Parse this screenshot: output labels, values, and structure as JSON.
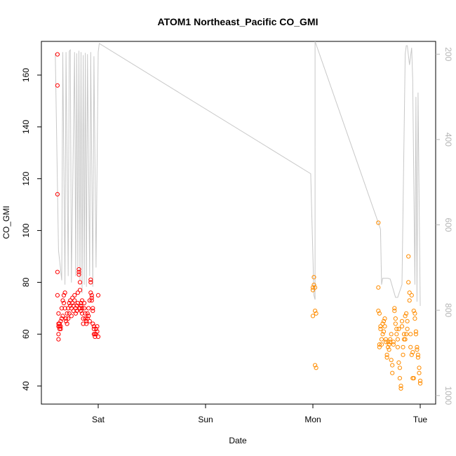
{
  "chart_data": {
    "type": "scatter",
    "title": "ATOM1 Northeast_Pacific CO_GMI",
    "xlabel": "Date",
    "ylabel": "CO_GMI",
    "x_unit": "day offset from Sat 00:00",
    "xlim": [
      -0.44,
      3.15
    ],
    "x_ticks": [
      {
        "value": 0,
        "label": "Sat"
      },
      {
        "value": 1,
        "label": "Sun"
      },
      {
        "value": 2,
        "label": "Mon"
      },
      {
        "value": 3,
        "label": "Tue"
      }
    ],
    "ylim": [
      33,
      173
    ],
    "y_ticks": [
      40,
      60,
      80,
      100,
      120,
      140,
      160
    ],
    "right_axis": {
      "label_color": "#b5b5b5",
      "ylim": [
        1020,
        170
      ],
      "ticks": [
        200,
        400,
        600,
        800,
        1000
      ]
    },
    "grid": false,
    "series": [
      {
        "color": "#ff0000",
        "marker": "open-circle",
        "x": [
          -0.38,
          -0.38,
          -0.38,
          -0.38,
          -0.38,
          -0.37,
          -0.37,
          -0.37,
          -0.37,
          -0.37,
          -0.36,
          -0.36,
          -0.36,
          -0.35,
          -0.35,
          -0.35,
          -0.34,
          -0.34,
          -0.33,
          -0.33,
          -0.32,
          -0.32,
          -0.31,
          -0.31,
          -0.3,
          -0.3,
          -0.29,
          -0.29,
          -0.28,
          -0.28,
          -0.27,
          -0.27,
          -0.26,
          -0.26,
          -0.25,
          -0.25,
          -0.24,
          -0.24,
          -0.23,
          -0.23,
          -0.22,
          -0.22,
          -0.21,
          -0.21,
          -0.2,
          -0.2,
          -0.19,
          -0.19,
          -0.18,
          -0.18,
          -0.18,
          -0.17,
          -0.17,
          -0.17,
          -0.16,
          -0.16,
          -0.16,
          -0.15,
          -0.15,
          -0.15,
          -0.14,
          -0.14,
          -0.13,
          -0.13,
          -0.12,
          -0.12,
          -0.11,
          -0.11,
          -0.1,
          -0.1,
          -0.09,
          -0.09,
          -0.08,
          -0.08,
          -0.07,
          -0.07,
          -0.07,
          -0.06,
          -0.06,
          -0.06,
          -0.05,
          -0.05,
          -0.05,
          -0.04,
          -0.04,
          -0.04,
          -0.03,
          -0.03,
          -0.02,
          -0.02,
          -0.01,
          -0.01,
          0,
          0
        ],
        "y": [
          168,
          156,
          114,
          84,
          75,
          68,
          64,
          63,
          60,
          58,
          64,
          63,
          62,
          65,
          63,
          62,
          70,
          66,
          73,
          67,
          75,
          72,
          76,
          70,
          66,
          65,
          68,
          64,
          70,
          66,
          72,
          68,
          73,
          71,
          70,
          67,
          74,
          72,
          71,
          69,
          75,
          73,
          70,
          68,
          71,
          69,
          76,
          72,
          84,
          83,
          85,
          80,
          77,
          70,
          72,
          71,
          69,
          73,
          70,
          68,
          66,
          64,
          72,
          70,
          68,
          66,
          65,
          64,
          68,
          66,
          70,
          67,
          73,
          65,
          81,
          80,
          76,
          75,
          73,
          74,
          70,
          69,
          64,
          63,
          60,
          62,
          60,
          59,
          62,
          60,
          63,
          61,
          59,
          75
        ]
      },
      {
        "color": "#ff8c00",
        "marker": "open-circle",
        "x": [
          2.0,
          2.0,
          2.0,
          2.01,
          2.01,
          2.02,
          2.02,
          2.02,
          2.03,
          2.03,
          2.61,
          2.61,
          2.61,
          2.62,
          2.62,
          2.62,
          2.63,
          2.63,
          2.64,
          2.64,
          2.65,
          2.65,
          2.66,
          2.66,
          2.67,
          2.67,
          2.68,
          2.68,
          2.69,
          2.69,
          2.7,
          2.7,
          2.71,
          2.71,
          2.72,
          2.72,
          2.73,
          2.73,
          2.74,
          2.74,
          2.75,
          2.75,
          2.76,
          2.76,
          2.77,
          2.77,
          2.78,
          2.78,
          2.79,
          2.79,
          2.8,
          2.8,
          2.81,
          2.81,
          2.82,
          2.82,
          2.83,
          2.83,
          2.84,
          2.84,
          2.85,
          2.85,
          2.86,
          2.86,
          2.87,
          2.87,
          2.88,
          2.88,
          2.89,
          2.89,
          2.9,
          2.9,
          2.91,
          2.91,
          2.92,
          2.92,
          2.93,
          2.93,
          2.94,
          2.94,
          2.95,
          2.95,
          2.96,
          2.96,
          2.97,
          2.97,
          2.98,
          2.98,
          2.99,
          2.99,
          3.0,
          3.0
        ],
        "y": [
          78,
          77,
          67,
          82,
          79,
          78,
          69,
          48,
          47,
          68,
          103,
          78,
          69,
          68,
          56,
          55,
          63,
          62,
          58,
          56,
          64,
          60,
          65,
          61,
          66,
          63,
          58,
          57,
          52,
          51,
          57,
          55,
          56,
          54,
          58,
          57,
          60,
          50,
          48,
          45,
          57,
          56,
          70,
          69,
          66,
          64,
          62,
          60,
          58,
          55,
          62,
          49,
          47,
          43,
          40,
          39,
          65,
          63,
          55,
          52,
          60,
          58,
          67,
          58,
          68,
          60,
          65,
          62,
          90,
          80,
          76,
          73,
          60,
          55,
          75,
          52,
          53,
          43,
          43,
          69,
          68,
          66,
          61,
          60,
          55,
          54,
          52,
          51,
          47,
          45,
          42,
          41
        ]
      }
    ],
    "pressure_line": {
      "color": "#c8c8c8",
      "x": [
        -0.4,
        -0.37,
        -0.34,
        -0.33,
        -0.31,
        -0.3,
        -0.28,
        -0.27,
        -0.26,
        -0.25,
        -0.22,
        -0.21,
        -0.2,
        -0.19,
        -0.18,
        -0.17,
        -0.16,
        -0.15,
        -0.14,
        -0.13,
        -0.12,
        -0.11,
        -0.1,
        -0.08,
        -0.07,
        -0.05,
        -0.04,
        -0.02,
        0.0,
        0.01,
        1.98,
        2.01,
        2.02,
        2.02,
        2.63,
        2.64,
        2.65,
        2.7,
        2.72,
        2.77,
        2.79,
        2.83,
        2.86,
        2.87,
        2.88,
        2.9,
        2.92,
        2.93,
        2.95,
        2.96,
        2.97,
        2.98,
        3.0
      ],
      "p": [
        198,
        660,
        730,
        195,
        740,
        195,
        720,
        193,
        190,
        735,
        195,
        720,
        198,
        700,
        192,
        730,
        195,
        760,
        202,
        740,
        197,
        745,
        200,
        720,
        195,
        745,
        205,
        700,
        195,
        175,
        480,
        765,
        775,
        170,
        610,
        740,
        725,
        725,
        727,
        770,
        770,
        740,
        200,
        180,
        180,
        225,
        185,
        260,
        740,
        300,
        780,
        290,
        790
      ]
    }
  }
}
